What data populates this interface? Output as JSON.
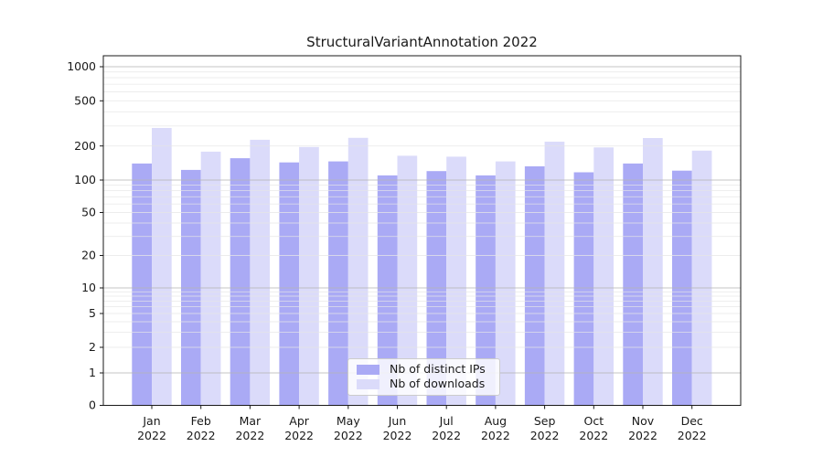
{
  "chart_data": {
    "type": "bar",
    "title": "StructuralVariantAnnotation 2022",
    "year_label": "2022",
    "categories": [
      "Jan",
      "Feb",
      "Mar",
      "Apr",
      "May",
      "Jun",
      "Jul",
      "Aug",
      "Sep",
      "Oct",
      "Nov",
      "Dec"
    ],
    "series": [
      {
        "name": "Nb of distinct IPs",
        "color": "#aaaaf5",
        "values": [
          140,
          123,
          156,
          143,
          146,
          110,
          120,
          110,
          132,
          117,
          140,
          121
        ]
      },
      {
        "name": "Nb of downloads",
        "color": "#dbdbfa",
        "values": [
          288,
          178,
          227,
          196,
          236,
          164,
          161,
          146,
          218,
          194,
          235,
          182
        ]
      }
    ],
    "y_ticks": [
      0,
      1,
      2,
      5,
      10,
      20,
      50,
      100,
      200,
      500,
      1000
    ],
    "y_scale": "symlog",
    "ylim": [
      0,
      1250
    ],
    "xlabel": "",
    "ylabel": "",
    "grid": "major-and-minor, drawn over bars",
    "legend_position": "lower center inside plot"
  },
  "style_colors": {
    "grid_major": "#b5b5b5",
    "grid_minor": "#e6e6e6",
    "spine": "#1a1a1a",
    "text": "#1a1a1a",
    "background": "#ffffff"
  }
}
